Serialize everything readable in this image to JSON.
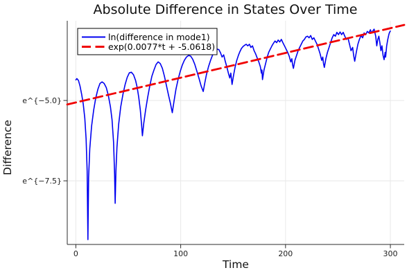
{
  "figure": {
    "background": "#ffffff",
    "axis_color": "#2b2b2b",
    "grid_color": "#e8e8e8",
    "text_color": "#111111"
  },
  "chart_data": {
    "type": "line",
    "title": "Absolute Difference in States Over Time",
    "xlabel": "Time",
    "ylabel": "Difference",
    "y_scale": "natural-log (tick labels rendered as e^{value})",
    "grid": true,
    "legend_position": "top-left",
    "xlim": [
      -8.2,
      313.2
    ],
    "ylim": [
      -9.48,
      -2.52
    ],
    "x_ticks": [
      {
        "value": 0,
        "label": "0"
      },
      {
        "value": 100,
        "label": "100"
      },
      {
        "value": 200,
        "label": "200"
      },
      {
        "value": 300,
        "label": "300"
      }
    ],
    "y_ticks": [
      {
        "value": -5.0,
        "label": "e^{−5.0}"
      },
      {
        "value": -7.5,
        "label": "e^{−7.5}"
      }
    ],
    "series": [
      {
        "name": "ln(difference in mode1)",
        "color": "#0000f0",
        "style": "solid",
        "line_width": 1.6,
        "points": [
          [
            0,
            -4.36
          ],
          [
            1,
            -4.32
          ],
          [
            2.5,
            -4.38
          ],
          [
            4,
            -4.55
          ],
          [
            5.5,
            -4.8
          ],
          [
            7,
            -5.1
          ],
          [
            8.5,
            -5.55
          ],
          [
            9.8,
            -6.2
          ],
          [
            10.8,
            -7.2
          ],
          [
            11.5,
            -9.33
          ],
          [
            12.2,
            -7.4
          ],
          [
            13.3,
            -6.5
          ],
          [
            15,
            -5.8
          ],
          [
            17,
            -5.3
          ],
          [
            19,
            -4.92
          ],
          [
            21,
            -4.65
          ],
          [
            23,
            -4.47
          ],
          [
            25,
            -4.42
          ],
          [
            27,
            -4.47
          ],
          [
            29,
            -4.6
          ],
          [
            31,
            -4.85
          ],
          [
            33,
            -5.2
          ],
          [
            34.5,
            -5.6
          ],
          [
            36,
            -6.3
          ],
          [
            37,
            -7.3
          ],
          [
            37.5,
            -8.2
          ],
          [
            38.2,
            -7.2
          ],
          [
            39.2,
            -6.45
          ],
          [
            40.8,
            -5.75
          ],
          [
            42.8,
            -5.2
          ],
          [
            45,
            -4.8
          ],
          [
            47,
            -4.5
          ],
          [
            49,
            -4.28
          ],
          [
            51,
            -4.14
          ],
          [
            53,
            -4.12
          ],
          [
            55,
            -4.2
          ],
          [
            57,
            -4.38
          ],
          [
            58.5,
            -4.6
          ],
          [
            60,
            -4.9
          ],
          [
            61.5,
            -5.3
          ],
          [
            62.7,
            -5.75
          ],
          [
            63.5,
            -6.1
          ],
          [
            64.8,
            -5.7
          ],
          [
            66.5,
            -5.3
          ],
          [
            68.5,
            -4.9
          ],
          [
            70.5,
            -4.55
          ],
          [
            72.5,
            -4.25
          ],
          [
            74.5,
            -4.05
          ],
          [
            76.5,
            -3.88
          ],
          [
            78.5,
            -3.8
          ],
          [
            80.5,
            -3.85
          ],
          [
            82.5,
            -4.0
          ],
          [
            84.5,
            -4.25
          ],
          [
            86.5,
            -4.55
          ],
          [
            88.5,
            -4.85
          ],
          [
            90.3,
            -5.1
          ],
          [
            92,
            -5.38
          ],
          [
            93.5,
            -5.05
          ],
          [
            95.5,
            -4.65
          ],
          [
            97.5,
            -4.35
          ],
          [
            99.5,
            -4.1
          ],
          [
            101.5,
            -3.9
          ],
          [
            103.5,
            -3.75
          ],
          [
            105.5,
            -3.65
          ],
          [
            107.5,
            -3.6
          ],
          [
            109.5,
            -3.62
          ],
          [
            111.5,
            -3.72
          ],
          [
            113.5,
            -3.88
          ],
          [
            115.5,
            -4.1
          ],
          [
            117.5,
            -4.32
          ],
          [
            119.5,
            -4.55
          ],
          [
            121.5,
            -4.72
          ],
          [
            123,
            -4.45
          ],
          [
            124.5,
            -4.2
          ],
          [
            126.5,
            -3.95
          ],
          [
            128.5,
            -3.75
          ],
          [
            130.5,
            -3.58
          ],
          [
            132.5,
            -3.46
          ],
          [
            134.5,
            -3.4
          ],
          [
            136.5,
            -3.42
          ],
          [
            138,
            -3.52
          ],
          [
            139.5,
            -3.65
          ],
          [
            141,
            -3.58
          ],
          [
            142.5,
            -3.78
          ],
          [
            144,
            -3.95
          ],
          [
            145.5,
            -4.15
          ],
          [
            146.8,
            -4.3
          ],
          [
            147.8,
            -4.15
          ],
          [
            149,
            -4.5
          ],
          [
            150.5,
            -4.2
          ],
          [
            152,
            -3.95
          ],
          [
            153.5,
            -3.75
          ],
          [
            155,
            -3.6
          ],
          [
            156.5,
            -3.48
          ],
          [
            158,
            -3.38
          ],
          [
            159.5,
            -3.32
          ],
          [
            161,
            -3.28
          ],
          [
            162.5,
            -3.25
          ],
          [
            164,
            -3.3
          ],
          [
            165.5,
            -3.25
          ],
          [
            167,
            -3.35
          ],
          [
            168.5,
            -3.3
          ],
          [
            170,
            -3.45
          ],
          [
            171.5,
            -3.55
          ],
          [
            173,
            -3.68
          ],
          [
            174.5,
            -3.8
          ],
          [
            176,
            -3.95
          ],
          [
            177,
            -4.15
          ],
          [
            177.5,
            -4.05
          ],
          [
            178,
            -4.35
          ],
          [
            179.5,
            -4.05
          ],
          [
            181,
            -3.85
          ],
          [
            182.5,
            -3.65
          ],
          [
            184,
            -3.5
          ],
          [
            185.5,
            -3.4
          ],
          [
            187,
            -3.3
          ],
          [
            188.5,
            -3.22
          ],
          [
            190,
            -3.15
          ],
          [
            191.5,
            -3.2
          ],
          [
            193,
            -3.12
          ],
          [
            194.5,
            -3.18
          ],
          [
            196,
            -3.1
          ],
          [
            197.5,
            -3.2
          ],
          [
            199,
            -3.3
          ],
          [
            200.5,
            -3.4
          ],
          [
            202,
            -3.5
          ],
          [
            203.5,
            -3.62
          ],
          [
            205,
            -3.8
          ],
          [
            206,
            -3.7
          ],
          [
            206.8,
            -3.9
          ],
          [
            207.5,
            -4.0
          ],
          [
            209,
            -3.75
          ],
          [
            210.5,
            -3.6
          ],
          [
            212,
            -3.45
          ],
          [
            213.5,
            -3.35
          ],
          [
            215,
            -3.25
          ],
          [
            216.5,
            -3.15
          ],
          [
            218,
            -3.1
          ],
          [
            219.5,
            -3.02
          ],
          [
            221,
            -3.0
          ],
          [
            222.5,
            -3.05
          ],
          [
            224,
            -2.98
          ],
          [
            225.5,
            -3.1
          ],
          [
            227,
            -3.05
          ],
          [
            228.5,
            -3.15
          ],
          [
            230,
            -3.25
          ],
          [
            231.5,
            -3.4
          ],
          [
            233,
            -3.55
          ],
          [
            234.5,
            -3.75
          ],
          [
            235.5,
            -3.65
          ],
          [
            236.2,
            -3.85
          ],
          [
            237,
            -3.97
          ],
          [
            238.5,
            -3.7
          ],
          [
            240,
            -3.5
          ],
          [
            241.5,
            -3.35
          ],
          [
            243,
            -3.2
          ],
          [
            244.5,
            -3.05
          ],
          [
            246,
            -2.95
          ],
          [
            247.5,
            -3.0
          ],
          [
            249,
            -2.88
          ],
          [
            250.5,
            -2.95
          ],
          [
            252,
            -2.87
          ],
          [
            253.5,
            -2.95
          ],
          [
            255,
            -2.88
          ],
          [
            256.5,
            -3.0
          ],
          [
            258,
            -3.1
          ],
          [
            259.5,
            -3.05
          ],
          [
            261,
            -3.25
          ],
          [
            262.5,
            -3.45
          ],
          [
            264,
            -3.35
          ],
          [
            265,
            -3.6
          ],
          [
            266,
            -3.78
          ],
          [
            267.5,
            -3.5
          ],
          [
            269,
            -3.25
          ],
          [
            270.5,
            -3.1
          ],
          [
            272,
            -2.98
          ],
          [
            273.5,
            -3.05
          ],
          [
            275,
            -2.9
          ],
          [
            276.5,
            -2.95
          ],
          [
            278,
            -2.85
          ],
          [
            279.5,
            -2.9
          ],
          [
            281,
            -2.8
          ],
          [
            282,
            -2.9
          ],
          [
            283,
            -2.85
          ],
          [
            284.5,
            -2.78
          ],
          [
            286,
            -3.0
          ],
          [
            287,
            -3.3
          ],
          [
            288,
            -3.1
          ],
          [
            289,
            -3.0
          ],
          [
            290,
            -3.2
          ],
          [
            291,
            -3.45
          ],
          [
            292,
            -3.3
          ],
          [
            293,
            -3.6
          ],
          [
            294,
            -3.73
          ],
          [
            295,
            -3.5
          ],
          [
            295.5,
            -3.65
          ],
          [
            296.5,
            -3.3
          ],
          [
            297.5,
            -3.1
          ],
          [
            298.5,
            -2.95
          ],
          [
            299.2,
            -2.88
          ],
          [
            300,
            -2.84
          ]
        ]
      },
      {
        "name": "exp(0.0077*t + -5.0618)",
        "color": "#f00000",
        "style": "dashed",
        "line_width": 2.8,
        "dash": "13 6.5",
        "fit": {
          "slope": 0.0077,
          "intercept": -5.0618
        },
        "x_range": [
          -8.2,
          313.2
        ]
      }
    ]
  }
}
